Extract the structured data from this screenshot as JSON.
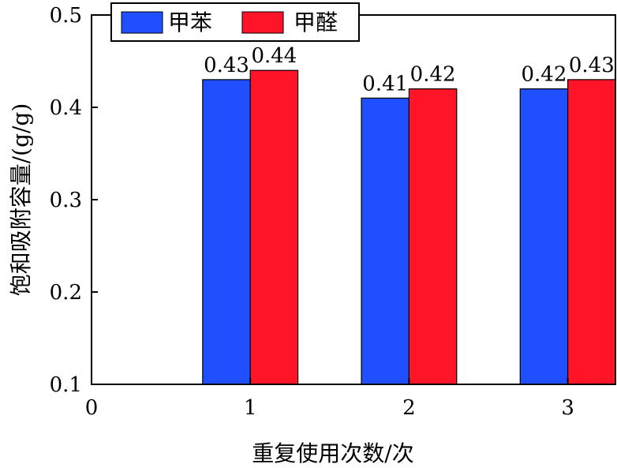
{
  "chart_data": {
    "type": "bar",
    "categories": [
      "1",
      "2",
      "3"
    ],
    "x": [
      1,
      2,
      3
    ],
    "series": [
      {
        "name": "甲苯",
        "values": [
          0.43,
          0.41,
          0.42
        ],
        "color": "#1f4fff"
      },
      {
        "name": "甲醛",
        "values": [
          0.44,
          0.42,
          0.43
        ],
        "color": "#ff1428"
      }
    ],
    "data_labels": [
      [
        "0.43",
        "0.41",
        "0.42"
      ],
      [
        "0.44",
        "0.42",
        "0.43"
      ]
    ],
    "xlabel": "重复使用次数/次",
    "ylabel": "饱和吸附容量/(g/g)",
    "xlim": [
      0,
      3.3
    ],
    "ylim": [
      0.1,
      0.5
    ],
    "xticks": [
      "0",
      "1",
      "2",
      "3"
    ],
    "yticks": [
      "0.1",
      "0.2",
      "0.3",
      "0.4",
      "0.5"
    ],
    "grid": false,
    "legend": "top-left"
  }
}
